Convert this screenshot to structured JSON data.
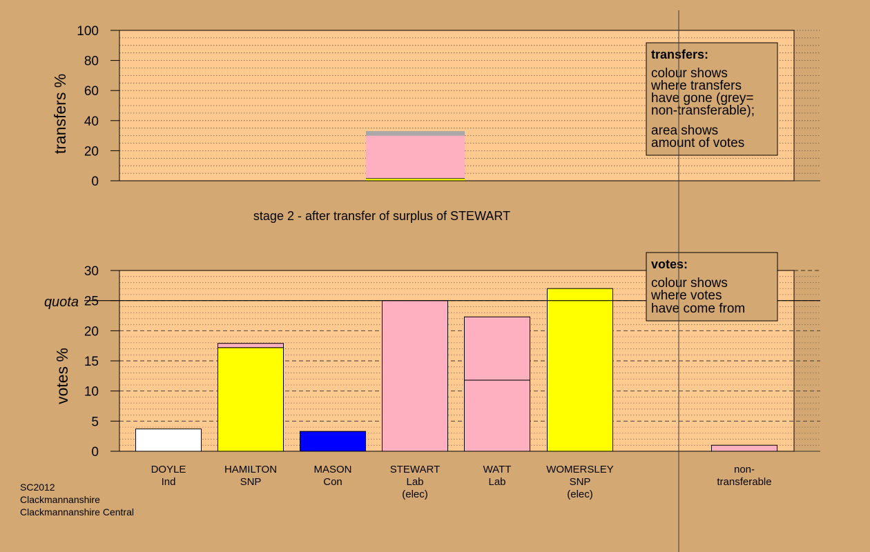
{
  "colors": {
    "page_bg": "#d4a872",
    "plot_bg": "#ffc990",
    "box_bg": "#d4a872",
    "snp": "#ffff00",
    "lab": "#ffb0c0",
    "con": "#0000ff",
    "ind": "#ffffff",
    "non_transferable": "#a8a8a8"
  },
  "chart_data": [
    {
      "type": "bar",
      "role": "transfers",
      "subtitle": "stage 2 - after transfer of surplus of STEWART",
      "ylabel": "transfers %",
      "ylim": [
        0,
        100
      ],
      "yticks": [
        0,
        20,
        40,
        60,
        80,
        100
      ],
      "grid": true,
      "legend": {
        "position": "top-right",
        "title": "transfers:",
        "lines_a": [
          "colour shows",
          "where transfers",
          "have gone (grey=",
          "non-transferable);"
        ],
        "lines_b": [
          "area shows",
          "amount of votes"
        ]
      },
      "bars": [
        {
          "category": "STEWART",
          "segments": [
            {
              "to": "WOMERSLEY",
              "color_key": "snp",
              "value": 1.5
            },
            {
              "to": "WATT",
              "color_key": "lab",
              "value": 28.5
            },
            {
              "to": "non-transferable",
              "color_key": "non_transferable",
              "value": 3.0
            }
          ]
        }
      ]
    },
    {
      "type": "bar",
      "role": "votes",
      "ylabel": "votes %",
      "ylim": [
        0,
        30
      ],
      "yticks": [
        0,
        5,
        10,
        15,
        20,
        25,
        30
      ],
      "quota": 25,
      "quota_label": "quota",
      "grid": true,
      "legend": {
        "position": "top-right",
        "title": "votes:",
        "lines": [
          "colour shows",
          "where votes",
          "have come from"
        ]
      },
      "categories": [
        {
          "name": "DOYLE",
          "party": "Ind",
          "note": ""
        },
        {
          "name": "HAMILTON",
          "party": "SNP",
          "note": ""
        },
        {
          "name": "MASON",
          "party": "Con",
          "note": ""
        },
        {
          "name": "STEWART",
          "party": "Lab",
          "note": "(elec)"
        },
        {
          "name": "WATT",
          "party": "Lab",
          "note": ""
        },
        {
          "name": "WOMERSLEY",
          "party": "SNP",
          "note": "(elec)"
        }
      ],
      "bars": [
        {
          "category": "DOYLE",
          "segments": [
            {
              "color_key": "ind",
              "value": 3.7
            }
          ]
        },
        {
          "category": "HAMILTON",
          "segments": [
            {
              "color_key": "snp",
              "value": 17.2
            },
            {
              "color_key": "lab",
              "value": 0.7
            }
          ]
        },
        {
          "category": "MASON",
          "segments": [
            {
              "color_key": "con",
              "value": 3.3
            }
          ]
        },
        {
          "category": "STEWART",
          "segments": [
            {
              "color_key": "lab",
              "value": 25.0
            }
          ]
        },
        {
          "category": "WATT",
          "segments": [
            {
              "color_key": "lab",
              "value": 11.8
            },
            {
              "color_key": "lab",
              "value": 10.5
            }
          ]
        },
        {
          "category": "WOMERSLEY",
          "segments": [
            {
              "color_key": "snp",
              "value": 27.0
            }
          ]
        }
      ],
      "non_transferable": {
        "label_lines": [
          "non-",
          "transferable"
        ],
        "color_key": "lab",
        "value": 1.0
      }
    }
  ],
  "footer": {
    "lines": [
      "SC2012",
      "Clackmannanshire",
      "Clackmannanshire Central"
    ]
  }
}
